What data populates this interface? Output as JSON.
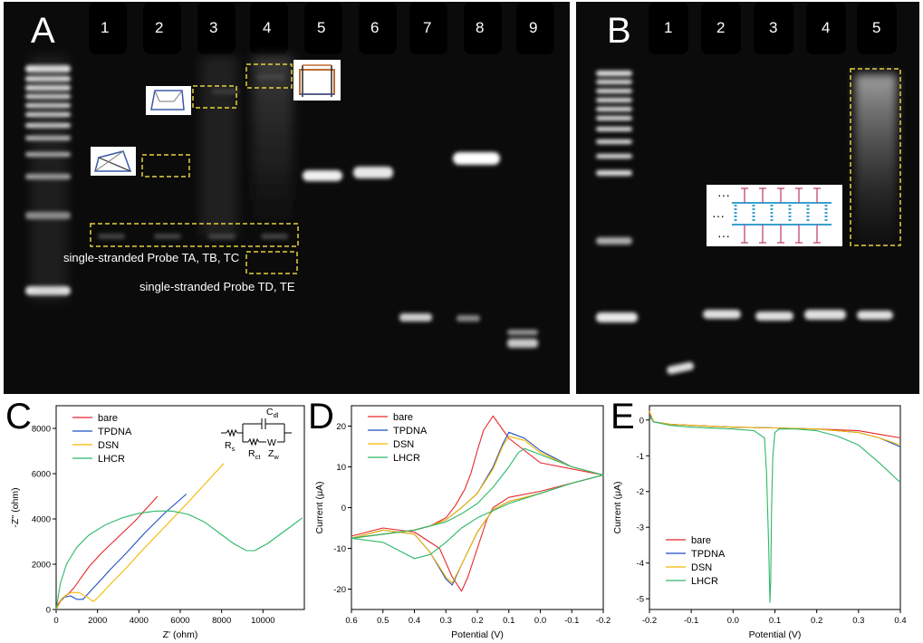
{
  "panels": {
    "A": {
      "label": "A",
      "lanes": [
        "1",
        "2",
        "3",
        "4",
        "5",
        "6",
        "7",
        "8",
        "9"
      ],
      "annotations": [
        "single-stranded Probe TA, TB, TC",
        "single-stranded Probe TD, TE"
      ]
    },
    "B": {
      "label": "B",
      "lanes": [
        "1",
        "2",
        "3",
        "4",
        "5"
      ]
    },
    "C": {
      "label": "C"
    },
    "D": {
      "label": "D"
    },
    "E": {
      "label": "E"
    }
  },
  "colors": {
    "bare": "#e8282c",
    "TPDNA": "#1f4fc0",
    "DSN": "#f5b800",
    "LHCR": "#2db86a",
    "highlight_box": "#e6d23a"
  },
  "chart_data": [
    {
      "id": "C",
      "type": "line",
      "xlabel": "Z' (ohm)",
      "ylabel": "-Z'' (ohm)",
      "xlim": [
        0,
        12000
      ],
      "ylim": [
        0,
        9000
      ],
      "xticks": [
        "0",
        "2000",
        "4000",
        "6000",
        "8000",
        "10000"
      ],
      "yticks": [
        "0",
        "2000",
        "4000",
        "6000",
        "8000"
      ],
      "legend": [
        "bare",
        "TPDNA",
        "DSN",
        "LHCR"
      ],
      "legend_position": "top-left",
      "circuit": {
        "cap": "C",
        "cap_sub": "dl",
        "rs": "R",
        "rs_sub": "s",
        "rct": "R",
        "rct_sub": "ct",
        "w": "W",
        "zw": "Z",
        "zw_sub": "w"
      },
      "series": [
        {
          "name": "bare",
          "x": [
            0,
            100,
            300,
            600,
            900,
            1200,
            1600,
            2200,
            3000,
            3800,
            4500,
            4900
          ],
          "y": [
            0,
            250,
            500,
            700,
            1000,
            1400,
            1900,
            2500,
            3200,
            3900,
            4600,
            5000
          ]
        },
        {
          "name": "TPDNA",
          "x": [
            0,
            200,
            400,
            700,
            1000,
            1300,
            1600,
            2000,
            2600,
            3400,
            4300,
            5300,
            6300
          ],
          "y": [
            0,
            350,
            550,
            600,
            450,
            450,
            750,
            1150,
            1750,
            2500,
            3400,
            4300,
            5100
          ]
        },
        {
          "name": "DSN",
          "x": [
            0,
            300,
            700,
            1100,
            1500,
            1800,
            2100,
            2600,
            3300,
            4200,
            5200,
            6500,
            8100
          ],
          "y": [
            0,
            500,
            750,
            750,
            550,
            350,
            600,
            1100,
            1750,
            2650,
            3600,
            4850,
            6450
          ]
        },
        {
          "name": "LHCR",
          "x": [
            0,
            200,
            500,
            1000,
            1600,
            2400,
            3200,
            4000,
            4800,
            5600,
            6400,
            7200,
            8000,
            8600,
            9200,
            9600,
            10200,
            10800,
            11400,
            11900
          ],
          "y": [
            0,
            1150,
            2000,
            2750,
            3300,
            3750,
            4050,
            4250,
            4350,
            4350,
            4200,
            3850,
            3300,
            2900,
            2600,
            2600,
            2900,
            3300,
            3700,
            4050
          ]
        }
      ]
    },
    {
      "id": "D",
      "type": "line",
      "xlabel": "Potential (V)",
      "ylabel": "Current (μA)",
      "xlim": [
        0.6,
        -0.2
      ],
      "ylim": [
        -25,
        25
      ],
      "xticks": [
        "0.6",
        "0.5",
        "0.4",
        "0.3",
        "0.2",
        "0.1",
        "0.0",
        "-0.1",
        "-0.2"
      ],
      "yticks": [
        "20",
        "10",
        "0",
        "-10",
        "-20"
      ],
      "legend": [
        "bare",
        "TPDNA",
        "DSN",
        "LHCR"
      ],
      "legend_position": "top-left",
      "series": [
        {
          "name": "bare",
          "x": [
            0.6,
            0.5,
            0.4,
            0.35,
            0.3,
            0.27,
            0.24,
            0.22,
            0.2,
            0.18,
            0.15,
            0.1,
            0.0,
            -0.1,
            -0.2,
            -0.1,
            0.0,
            0.1,
            0.15,
            0.17,
            0.2,
            0.23,
            0.25,
            0.28,
            0.32,
            0.4,
            0.5,
            0.6
          ],
          "y": [
            -7.5,
            -6.5,
            -5.5,
            -4.5,
            -2.5,
            0.5,
            4.5,
            8.5,
            14,
            19,
            22.5,
            17,
            11,
            9.5,
            8,
            6,
            4,
            2.5,
            0,
            -3,
            -10,
            -17,
            -20.5,
            -17,
            -10,
            -6,
            -5,
            -7
          ]
        },
        {
          "name": "TPDNA",
          "x": [
            0.6,
            0.5,
            0.4,
            0.35,
            0.3,
            0.25,
            0.2,
            0.15,
            0.12,
            0.1,
            0.05,
            0.0,
            -0.1,
            -0.2,
            -0.1,
            0.0,
            0.1,
            0.15,
            0.2,
            0.25,
            0.28,
            0.3,
            0.35,
            0.4,
            0.5,
            0.6
          ],
          "y": [
            -7.5,
            -6.5,
            -5.5,
            -4.5,
            -3,
            0,
            3.5,
            10,
            15.5,
            18.5,
            17,
            14,
            10,
            8,
            6,
            3.5,
            1.5,
            -0.5,
            -6,
            -14,
            -19,
            -17.5,
            -11,
            -6.5,
            -5.5,
            -7.5
          ]
        },
        {
          "name": "DSN",
          "x": [
            0.6,
            0.5,
            0.4,
            0.35,
            0.3,
            0.25,
            0.2,
            0.15,
            0.12,
            0.1,
            0.05,
            0.0,
            -0.1,
            -0.2,
            -0.1,
            0.0,
            0.1,
            0.15,
            0.2,
            0.25,
            0.28,
            0.3,
            0.35,
            0.4,
            0.5,
            0.6
          ],
          "y": [
            -7.5,
            -6.5,
            -5.5,
            -4.5,
            -3,
            0,
            3.5,
            9.5,
            15,
            17.5,
            16.5,
            13.5,
            10,
            8,
            6,
            3.5,
            1.5,
            -0.5,
            -6,
            -14,
            -18.5,
            -17,
            -11,
            -6.5,
            -5.5,
            -7.5
          ]
        },
        {
          "name": "LHCR",
          "x": [
            0.6,
            0.5,
            0.4,
            0.3,
            0.25,
            0.2,
            0.15,
            0.1,
            0.07,
            0.05,
            0.0,
            -0.1,
            -0.2,
            -0.1,
            0.0,
            0.1,
            0.2,
            0.25,
            0.3,
            0.35,
            0.4,
            0.45,
            0.5,
            0.6
          ],
          "y": [
            -7.5,
            -6.5,
            -5.5,
            -3.5,
            -1.5,
            1,
            5,
            10,
            13.5,
            14.5,
            13,
            10,
            8,
            6,
            3.5,
            1,
            -2.5,
            -5,
            -8.5,
            -11.5,
            -12.5,
            -10.5,
            -8.5,
            -7.5
          ]
        }
      ]
    },
    {
      "id": "E",
      "type": "line",
      "xlabel": "Potential (V)",
      "ylabel": "Current (μA)",
      "xlim": [
        -0.2,
        0.4
      ],
      "ylim": [
        -5.3,
        0.4
      ],
      "xticks": [
        "-0.2",
        "-0.1",
        "0.0",
        "0.1",
        "0.2",
        "0.3",
        "0.4"
      ],
      "yticks": [
        "0",
        "-1",
        "-2",
        "-3",
        "-4",
        "-5"
      ],
      "legend": [
        "bare",
        "TPDNA",
        "DSN",
        "LHCR"
      ],
      "legend_position": "bottom-left",
      "series": [
        {
          "name": "bare",
          "x": [
            -0.2,
            -0.19,
            -0.15,
            -0.1,
            0.0,
            0.1,
            0.2,
            0.3,
            0.35,
            0.4
          ],
          "y": [
            0.2,
            -0.05,
            -0.12,
            -0.15,
            -0.2,
            -0.22,
            -0.25,
            -0.3,
            -0.4,
            -0.5
          ]
        },
        {
          "name": "TPDNA",
          "x": [
            -0.2,
            -0.19,
            -0.15,
            -0.1,
            0.0,
            0.1,
            0.2,
            0.3,
            0.35,
            0.4
          ],
          "y": [
            0.15,
            -0.05,
            -0.12,
            -0.15,
            -0.2,
            -0.22,
            -0.25,
            -0.35,
            -0.5,
            -0.75
          ]
        },
        {
          "name": "DSN",
          "x": [
            -0.2,
            -0.19,
            -0.15,
            -0.1,
            0.0,
            0.1,
            0.2,
            0.3,
            0.35,
            0.4
          ],
          "y": [
            0.25,
            -0.05,
            -0.12,
            -0.15,
            -0.2,
            -0.22,
            -0.25,
            -0.35,
            -0.5,
            -0.7
          ]
        },
        {
          "name": "LHCR",
          "x": [
            -0.2,
            -0.19,
            -0.15,
            -0.1,
            0.0,
            0.05,
            0.075,
            0.08,
            0.085,
            0.088,
            0.09,
            0.092,
            0.095,
            0.1,
            0.11,
            0.15,
            0.2,
            0.25,
            0.3,
            0.35,
            0.4
          ],
          "y": [
            0.1,
            -0.05,
            -0.15,
            -0.2,
            -0.25,
            -0.3,
            -0.5,
            -1.5,
            -3.5,
            -5.1,
            -4.5,
            -2.5,
            -1.0,
            -0.35,
            -0.25,
            -0.25,
            -0.3,
            -0.45,
            -0.7,
            -1.2,
            -1.75
          ]
        }
      ]
    }
  ]
}
